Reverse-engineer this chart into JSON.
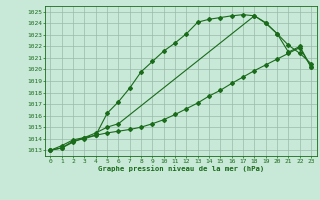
{
  "title": "Graphe pression niveau de la mer (hPa)",
  "xlim": [
    -0.5,
    23.5
  ],
  "ylim": [
    1012.5,
    1025.5
  ],
  "yticks": [
    1013,
    1014,
    1015,
    1016,
    1017,
    1018,
    1019,
    1020,
    1021,
    1022,
    1023,
    1024,
    1025
  ],
  "xticks": [
    0,
    1,
    2,
    3,
    4,
    5,
    6,
    7,
    8,
    9,
    10,
    11,
    12,
    13,
    14,
    15,
    16,
    17,
    18,
    19,
    20,
    21,
    22,
    23
  ],
  "bg_color": "#c8e8d8",
  "line_color": "#1a6b1a",
  "grid_color": "#99bbaa",
  "curve1_x": [
    0,
    1,
    2,
    3,
    4,
    5,
    6,
    7,
    8,
    9,
    10,
    11,
    12,
    13,
    14,
    15,
    16,
    17,
    18,
    19,
    20,
    21,
    22,
    23
  ],
  "curve1_y": [
    1013.0,
    1013.4,
    1013.9,
    1014.1,
    1014.3,
    1016.2,
    1017.2,
    1018.4,
    1019.8,
    1020.7,
    1021.6,
    1022.3,
    1023.1,
    1024.1,
    1024.35,
    1024.5,
    1024.65,
    1024.75,
    1024.65,
    1024.0,
    1023.1,
    1022.1,
    1021.4,
    1020.5
  ],
  "curve2_x": [
    0,
    1,
    2,
    3,
    4,
    5,
    6,
    7,
    8,
    9,
    10,
    11,
    12,
    13,
    14,
    15,
    16,
    17,
    18,
    19,
    20,
    21,
    22,
    23
  ],
  "curve2_y": [
    1013.0,
    1013.2,
    1013.8,
    1014.0,
    1014.3,
    1014.5,
    1014.65,
    1014.8,
    1015.0,
    1015.3,
    1015.65,
    1016.1,
    1016.6,
    1017.1,
    1017.7,
    1018.2,
    1018.8,
    1019.35,
    1019.9,
    1020.4,
    1020.9,
    1021.4,
    1021.9,
    1020.2
  ],
  "curve3_x": [
    0,
    1,
    2,
    3,
    4,
    5,
    6,
    18,
    19,
    20,
    21,
    22,
    23
  ],
  "curve3_y": [
    1013.0,
    1013.2,
    1013.7,
    1014.1,
    1014.5,
    1015.0,
    1015.3,
    1024.65,
    1024.05,
    1023.1,
    1021.5,
    1022.0,
    1020.2
  ]
}
